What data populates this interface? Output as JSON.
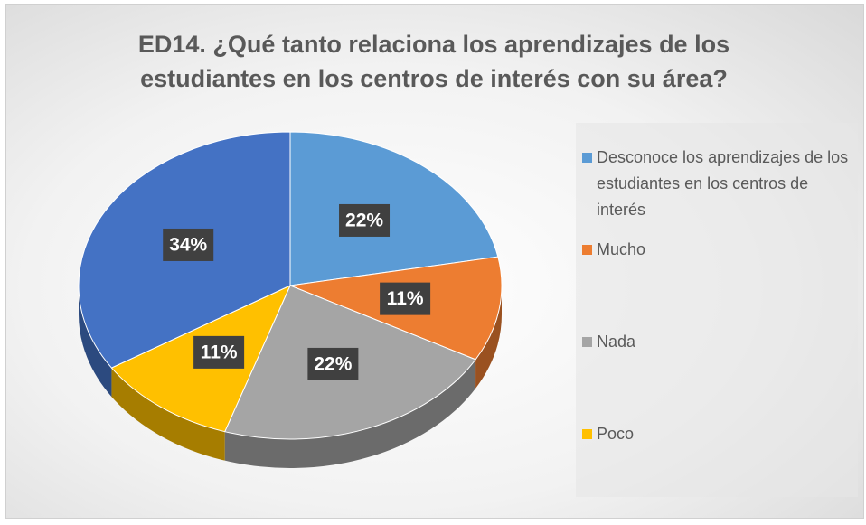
{
  "chart_data": {
    "type": "pie",
    "title": "ED14. ¿Qué tanto relaciona los aprendizajes de los estudiantes en los centros de interés con su área?",
    "categories": [
      "Desconoce los aprendizajes de los estudiantes en los centros de interés",
      "Mucho",
      "Nada",
      "Poco",
      null
    ],
    "values": [
      22,
      11,
      22,
      11,
      34
    ],
    "value_labels": [
      "22%",
      "11%",
      "22%",
      "11%",
      "34%"
    ],
    "colors": [
      "#5b9bd5",
      "#ed7d31",
      "#a5a5a5",
      "#ffc000",
      "#4472c4"
    ],
    "legend": "right"
  }
}
